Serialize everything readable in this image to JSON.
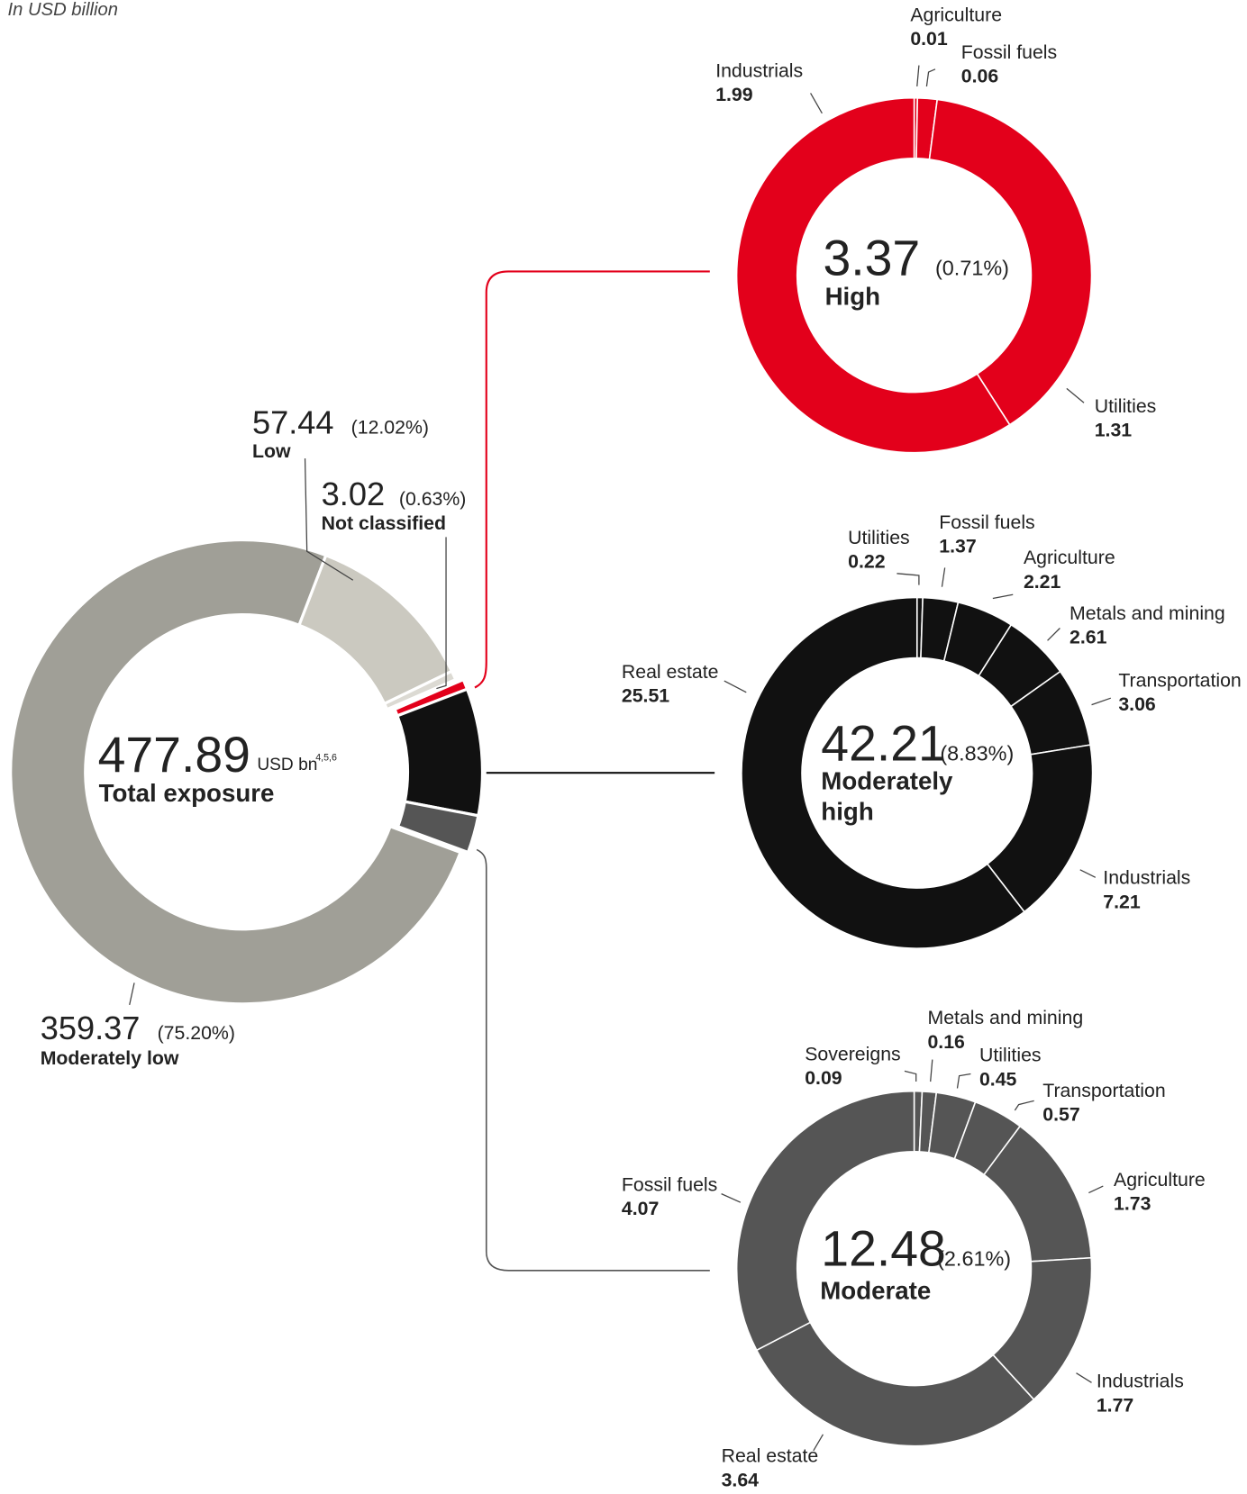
{
  "chart_data": [
    {
      "type": "donut",
      "subtitle": "In USD billion",
      "categories": [
        "Moderately low",
        "Low",
        "Not classified",
        "High",
        "Moderately high",
        "Moderate"
      ],
      "values": [
        359.37,
        57.44,
        3.02,
        3.37,
        42.21,
        12.48
      ],
      "share_labels": [
        "(75.20%)",
        "(12.02%)",
        "(0.63%)",
        "(0.71%)",
        "(8.83%)",
        "(2.61%)"
      ],
      "colors": [
        "#a09f97",
        "#cbc9c0",
        "#dcdad3",
        "#e3001b",
        "#111111",
        "#555555"
      ],
      "center_value": 477.89,
      "center_unit": "USD bn",
      "center_footnotes": "4,5,6",
      "center_label": "Total exposure"
    },
    {
      "type": "donut",
      "categories": [
        "Agriculture",
        "Fossil fuels",
        "Utilities",
        "Industrials"
      ],
      "values": [
        0.01,
        0.06,
        1.31,
        1.99
      ],
      "color": "#e3001b"
    },
    {
      "type": "donut",
      "categories": [
        "Utilities",
        "Fossil fuels",
        "Agriculture",
        "Metals and mining",
        "Transportation",
        "Industrials",
        "Real estate"
      ],
      "values": [
        0.22,
        1.37,
        2.21,
        2.61,
        3.06,
        7.21,
        25.51
      ],
      "color": "#111111"
    },
    {
      "type": "donut",
      "categories": [
        "Sovereigns",
        "Metals and mining",
        "Utilities",
        "Transportation",
        "Agriculture",
        "Industrials",
        "Real estate",
        "Fossil fuels"
      ],
      "values": [
        0.09,
        0.16,
        0.45,
        0.57,
        1.73,
        1.77,
        3.64,
        4.07
      ],
      "color": "#555555"
    }
  ]
}
